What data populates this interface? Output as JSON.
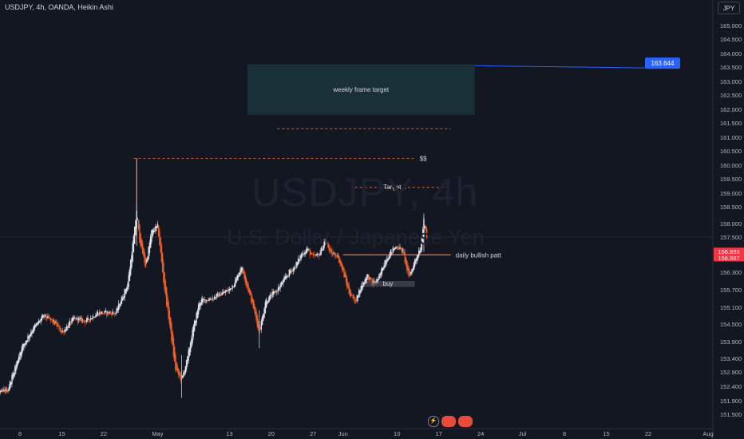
{
  "header": {
    "symbol_line": "USDJPY, 4h, OANDA, Heikin Ashi"
  },
  "currency_button": "JPY",
  "watermark": {
    "main": "USDJPY, 4h",
    "sub": "U.S. Dollar / Japanese Yen"
  },
  "bottom_icons": [
    {
      "name": "lightning-icon",
      "label": "⚡"
    },
    {
      "name": "event-icon-1",
      "label": ""
    },
    {
      "name": "event-icon-2",
      "label": ""
    }
  ],
  "chart_data": {
    "type": "candlestick",
    "style": "Heikin Ashi",
    "ylim": [
      151.2,
      165.5
    ],
    "y_ticks": [
      {
        "label": "165.000",
        "v": 165.0
      },
      {
        "label": "164.500",
        "v": 164.5
      },
      {
        "label": "164.000",
        "v": 164.0
      },
      {
        "label": "163.500",
        "v": 163.5
      },
      {
        "label": "163.000",
        "v": 163.0
      },
      {
        "label": "162.500",
        "v": 162.5
      },
      {
        "label": "162.000",
        "v": 162.0
      },
      {
        "label": "161.500",
        "v": 161.5
      },
      {
        "label": "161.000",
        "v": 161.0
      },
      {
        "label": "160.500",
        "v": 160.5
      },
      {
        "label": "160.000",
        "v": 160.0
      },
      {
        "label": "159.500",
        "v": 159.5
      },
      {
        "label": "159.000",
        "v": 159.0
      },
      {
        "label": "158.500",
        "v": 158.5
      },
      {
        "label": "158.000",
        "v": 158.0
      },
      {
        "label": "157.500",
        "v": 157.5
      },
      {
        "label": "156.300",
        "v": 156.3
      },
      {
        "label": "155.700",
        "v": 155.7
      },
      {
        "label": "155.100",
        "v": 155.1
      },
      {
        "label": "154.500",
        "v": 154.5
      },
      {
        "label": "153.900",
        "v": 153.9
      },
      {
        "label": "153.400",
        "v": 153.4
      },
      {
        "label": "152.900",
        "v": 152.9
      },
      {
        "label": "152.400",
        "v": 152.4
      },
      {
        "label": "151.900",
        "v": 151.9
      },
      {
        "label": "151.500",
        "v": 151.5
      }
    ],
    "x_ticks": [
      {
        "label": "8",
        "day": 8
      },
      {
        "label": "15",
        "day": 15
      },
      {
        "label": "22",
        "day": 22
      },
      {
        "label": "May",
        "day": 31
      },
      {
        "label": "13",
        "day": 43
      },
      {
        "label": "20",
        "day": 50
      },
      {
        "label": "27",
        "day": 57
      },
      {
        "label": "Jun",
        "day": 62
      },
      {
        "label": "10",
        "day": 71
      },
      {
        "label": "17",
        "day": 78
      },
      {
        "label": "24",
        "day": 85
      },
      {
        "label": "Jul",
        "day": 92
      },
      {
        "label": "8",
        "day": 99
      },
      {
        "label": "15",
        "day": 106
      },
      {
        "label": "22",
        "day": 113
      },
      {
        "label": "Aug",
        "day": 123
      }
    ],
    "price_labels": [
      {
        "label": "156.893",
        "v": 156.893,
        "color": "#f23645"
      },
      {
        "label": "156.887",
        "v": 156.887,
        "color": "#f23645"
      }
    ],
    "target_badge": {
      "label": "163.644",
      "v": 163.644,
      "color": "#2962ff"
    },
    "path": [
      [
        0,
        151.4
      ],
      [
        2,
        151.8
      ],
      [
        4,
        152.1
      ],
      [
        6,
        152.3
      ],
      [
        8,
        153.6
      ],
      [
        10,
        154.3
      ],
      [
        12,
        154.8
      ],
      [
        14,
        154.5
      ],
      [
        15,
        154.2
      ],
      [
        17,
        154.7
      ],
      [
        19,
        154.6
      ],
      [
        21,
        154.9
      ],
      [
        23,
        154.9
      ],
      [
        24,
        154.9
      ],
      [
        26,
        155.9
      ],
      [
        27,
        157.5
      ],
      [
        27.5,
        158.4
      ],
      [
        28,
        157.4
      ],
      [
        29,
        156.5
      ],
      [
        30,
        157.7
      ],
      [
        31,
        157.9
      ],
      [
        32,
        156.0
      ],
      [
        33,
        154.5
      ],
      [
        34,
        153.0
      ],
      [
        35,
        152.6
      ],
      [
        36,
        153.4
      ],
      [
        37,
        154.4
      ],
      [
        38,
        155.3
      ],
      [
        40,
        155.4
      ],
      [
        42,
        155.6
      ],
      [
        43,
        155.7
      ],
      [
        44,
        156.0
      ],
      [
        45,
        156.5
      ],
      [
        46,
        155.8
      ],
      [
        47,
        155.1
      ],
      [
        48,
        154.2
      ],
      [
        49,
        155.3
      ],
      [
        50,
        155.5
      ],
      [
        51,
        155.7
      ],
      [
        52,
        156.0
      ],
      [
        53,
        156.3
      ],
      [
        54,
        156.5
      ],
      [
        55,
        156.9
      ],
      [
        56,
        157.1
      ],
      [
        57,
        156.8
      ],
      [
        58,
        156.9
      ],
      [
        59,
        157.4
      ],
      [
        60,
        156.9
      ],
      [
        61,
        156.9
      ],
      [
        62,
        156.3
      ],
      [
        63,
        155.6
      ],
      [
        64,
        155.3
      ],
      [
        65,
        155.8
      ],
      [
        66,
        156.2
      ],
      [
        67,
        155.9
      ],
      [
        68,
        156.1
      ],
      [
        69,
        156.7
      ],
      [
        70,
        157.0
      ],
      [
        71,
        157.2
      ],
      [
        72,
        157.0
      ],
      [
        73,
        156.1
      ],
      [
        74,
        156.7
      ],
      [
        75,
        157.2
      ],
      [
        75.5,
        158.2
      ],
      [
        76,
        157.4
      ]
    ],
    "annotations": [
      {
        "type": "rect",
        "label": "weekly frame target",
        "y_low": 161.8,
        "y_high": 163.6,
        "day_start": 46,
        "day_end": 84,
        "color": "#1e3a40"
      },
      {
        "type": "hline",
        "label": "$$",
        "v": 160.24,
        "day_start": 27,
        "day_end": 74,
        "color": "#ff6d3a"
      },
      {
        "type": "hline",
        "label": "",
        "v": 161.3,
        "day_start": 51,
        "day_end": 80,
        "color": "#ff6d3a"
      },
      {
        "type": "hline",
        "label": "Target 1",
        "v": 159.2,
        "day_start": 64,
        "day_end": 80,
        "color": "#ff6d3a"
      },
      {
        "type": "hline",
        "label": "daily bullish patt",
        "v": 156.893,
        "day_start": 62,
        "day_end": 80,
        "color": "#ff6d3a"
      },
      {
        "type": "vline",
        "label": "",
        "v_low": 157.5,
        "v_high": 160.24,
        "day": 27.5,
        "color": "#ff6d3a"
      },
      {
        "type": "box",
        "label": "buy",
        "y_low": 155.8,
        "y_high": 156.0,
        "day_start": 65,
        "day_end": 74,
        "color": "#3a3d47"
      }
    ],
    "last_price_line": 157.5,
    "colors": {
      "up": "#e0e3eb",
      "down": "#f0602a"
    }
  }
}
